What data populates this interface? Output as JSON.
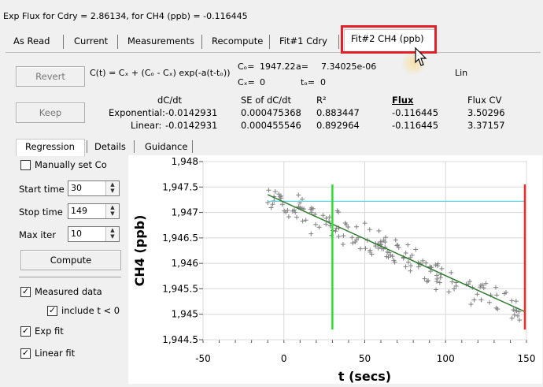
{
  "window_title": "Exp Flux for Cdry = 2.86134, for CH4 (ppb) = -0.116445",
  "tabs": [
    "As Read",
    "Current",
    "Measurements",
    "Recompute",
    "Fit#1 Cdry",
    "Fit#2 CH4 (ppb)"
  ],
  "buttons": {
    "revert": "Revert",
    "keep": "Keep",
    "compute": "Compute"
  },
  "model": {
    "formula": "C(t) = Cₓ + (Cₒ - Cₓ) exp(-a(t-tₒ))",
    "co_label": "Cₒ=",
    "co_value": "1947.22",
    "a_label": "a=",
    "a_value": "7.34025e-06",
    "cx_label": "Cₓ=",
    "cx_value": "0",
    "to_label": "tₒ=",
    "to_value": "0",
    "mode": "Lin"
  },
  "stats": {
    "headers": [
      "dC/dt",
      "SE of dC/dt",
      "R²",
      "Flux",
      "Flux CV"
    ],
    "rows": [
      {
        "label": "Exponential:",
        "values": [
          "-0.0142931",
          "0.000475368",
          "0.883447",
          "-0.116445",
          "3.50296"
        ]
      },
      {
        "label": "Linear:",
        "values": [
          "-0.0142931",
          "0.000455546",
          "0.892964",
          "-0.116445",
          "3.37157"
        ]
      }
    ]
  },
  "subtabs": [
    "Regression",
    "Details",
    "Guidance"
  ],
  "controls": {
    "manual_co": "Manually set Co",
    "start_time_label": "Start time",
    "start_time": "30",
    "stop_time_label": "Stop time",
    "stop_time": "149",
    "max_iter_label": "Max iter",
    "max_iter": "10",
    "measured_data": "Measured data",
    "include_neg": "include t < 0",
    "exp_fit": "Exp fit",
    "linear_fit": "Linear fit"
  },
  "chart_data": {
    "type": "scatter",
    "xlabel": "t (secs)",
    "ylabel": "CH4 (ppb)",
    "xlim": [
      -50,
      150
    ],
    "ylim": [
      1944.5,
      1948
    ],
    "x_ticks": [
      "-50",
      "0",
      "50",
      "100",
      "150"
    ],
    "y_ticks": [
      "1,948",
      "1,947.5",
      "1,947",
      "1,946.5",
      "1,946",
      "1,945.5",
      "1,945",
      "1,944.5"
    ],
    "grid": true,
    "fit_line": {
      "x": [
        -10,
        149
      ],
      "y": [
        1947.35,
        1945.05
      ],
      "color": "#2f7d2f"
    },
    "reference_line": {
      "x": [
        -10,
        149
      ],
      "y": [
        1947.22,
        1947.22
      ],
      "color": "#5fd3e0"
    },
    "start_marker": {
      "x": 30,
      "color": "#2ee02e"
    },
    "stop_marker": {
      "x": 149,
      "color": "#e03030"
    },
    "marker_color": "#808080"
  }
}
